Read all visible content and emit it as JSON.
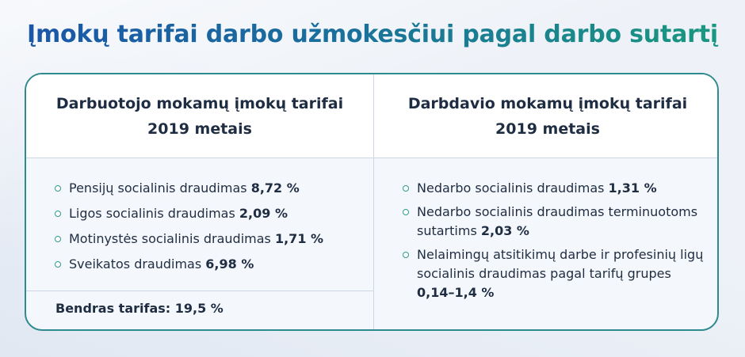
{
  "title": "Įmokų tarifai darbo užmokesčiui pagal darbo sutartį",
  "employee": {
    "heading_line1": "Darbuotojo mokamų įmokų tarifai",
    "heading_line2": "2019 metais",
    "items": [
      {
        "label": "Pensijų socialinis draudimas ",
        "value": "8,72 %"
      },
      {
        "label": "Ligos socialinis draudimas ",
        "value": "2,09 %"
      },
      {
        "label": "Motinystės socialinis draudimas ",
        "value": "1,71 %"
      },
      {
        "label": "Sveikatos draudimas ",
        "value": "6,98 %"
      }
    ],
    "total": "Bendras tarifas: 19,5 %"
  },
  "employer": {
    "heading_line1": "Darbdavio mokamų įmokų tarifai",
    "heading_line2": "2019 metais",
    "items": [
      {
        "label": "Nedarbo socialinis draudimas ",
        "value": "1,31 %"
      },
      {
        "label": "Nedarbo socialinis draudimas terminuotoms sutartims ",
        "value": "2,03 %"
      },
      {
        "label": "Nelaimingų atsitikimų darbe ir profesinių ligų socialinis draudimas pagal tarifų grupes ",
        "value": "0,14–1,4 %"
      }
    ]
  },
  "colors": {
    "title_start": "#1a55a8",
    "title_end": "#1a9a7e",
    "card_border": "#2d8a8e",
    "bullet": "#2c9a8c"
  }
}
